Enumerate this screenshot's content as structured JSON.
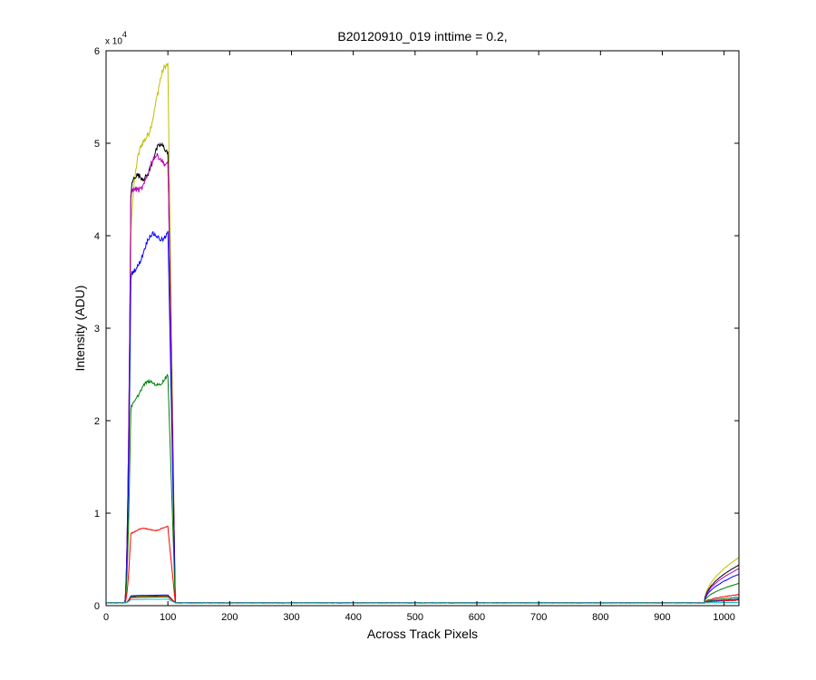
{
  "chart_data": {
    "type": "line",
    "title": "B20120910_019 inttime = 0.2,",
    "xlabel": "Across Track Pixels",
    "ylabel": "Intensity (ADU)",
    "y_multiplier_base": "x 10",
    "y_multiplier_exp": "4",
    "xlim": [
      0,
      1024
    ],
    "ylim": [
      0,
      60000
    ],
    "xticks": [
      0,
      100,
      200,
      300,
      400,
      500,
      600,
      700,
      800,
      900,
      1000
    ],
    "yticks": [
      0,
      10000,
      20000,
      30000,
      40000,
      50000,
      60000
    ],
    "ytick_labels": [
      "0",
      "1",
      "2",
      "3",
      "4",
      "5",
      "6"
    ],
    "grid": false,
    "baseline": 300,
    "series": [
      {
        "color": "#bfbf00",
        "plateau_start": 39000,
        "plateau_end": 58000,
        "right_value": 5200
      },
      {
        "color": "#000000",
        "plateau_start": 43500,
        "plateau_end": 49500,
        "right_value": 4400
      },
      {
        "color": "#bf00bf",
        "plateau_start": 43000,
        "plateau_end": 48700,
        "right_value": 4000
      },
      {
        "color": "#0000ff",
        "plateau_start": 35000,
        "plateau_end": 40800,
        "right_value": 3400
      },
      {
        "color": "#008000",
        "plateau_start": 21500,
        "plateau_end": 24800,
        "right_value": 2400
      },
      {
        "color": "#ff0000",
        "plateau_start": 7900,
        "plateau_end": 8400,
        "right_value": 1200
      },
      {
        "color": "#0000ff",
        "plateau_start": 1050,
        "plateau_end": 1150,
        "right_value": 700
      },
      {
        "color": "#008000",
        "plateau_start": 950,
        "plateau_end": 1050,
        "right_value": 900
      },
      {
        "color": "#ff0000",
        "plateau_start": 850,
        "plateau_end": 950,
        "right_value": 600
      },
      {
        "color": "#00bfbf",
        "plateau_start": 650,
        "plateau_end": 700,
        "right_value": 350
      }
    ],
    "left_block": {
      "rise_start": 30,
      "rise_end": 40,
      "fall_start": 100,
      "fall_end": 112
    },
    "right_block": {
      "rise_start": 968,
      "rise_end": 985
    }
  }
}
